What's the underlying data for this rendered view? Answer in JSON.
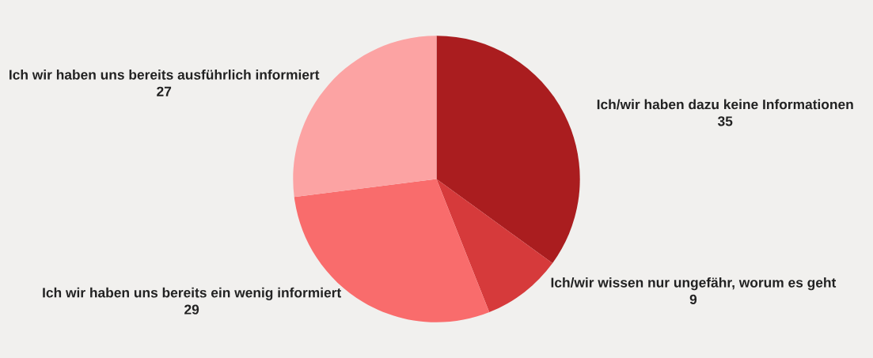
{
  "chart_data": {
    "type": "pie",
    "categories": [
      "Ich/wir haben dazu keine Informationen",
      "Ich/wir wissen nur ungefähr, worum es geht",
      "Ich wir haben uns bereits ein wenig informiert",
      "Ich wir haben uns bereits ausführlich informiert"
    ],
    "values": [
      35,
      9,
      29,
      27
    ],
    "colors": [
      "#aa1d1f",
      "#d63a3b",
      "#f96c6c",
      "#fca3a3"
    ],
    "data_labels": true
  }
}
